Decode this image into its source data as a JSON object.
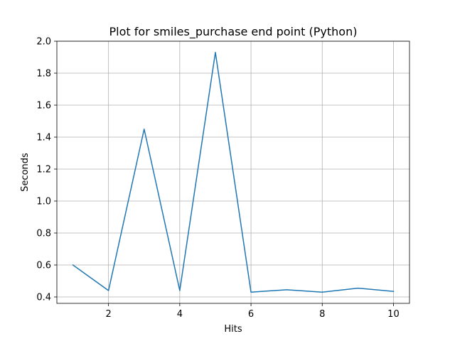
{
  "chart_data": {
    "type": "line",
    "title": "Plot for smiles_purchase end point (Python)",
    "xlabel": "Hits",
    "ylabel": "Seconds",
    "xlim": [
      0.55,
      10.45
    ],
    "ylim": [
      0.36,
      2.0
    ],
    "xticks": [
      2,
      4,
      6,
      8,
      10
    ],
    "xtick_labels": [
      "2",
      "4",
      "6",
      "8",
      "10"
    ],
    "yticks": [
      0.4,
      0.6,
      0.8,
      1.0,
      1.2,
      1.4,
      1.6,
      1.8,
      2.0
    ],
    "ytick_labels": [
      "0.4",
      "0.6",
      "0.8",
      "1.0",
      "1.2",
      "1.4",
      "1.6",
      "1.8",
      "2.0"
    ],
    "grid": true,
    "series": [
      {
        "color": "#1f77b4",
        "x": [
          1,
          2,
          3,
          4,
          5,
          6,
          7,
          8,
          9,
          10
        ],
        "y": [
          0.6,
          0.44,
          1.45,
          0.44,
          1.93,
          0.43,
          0.445,
          0.43,
          0.455,
          0.435
        ]
      }
    ]
  }
}
